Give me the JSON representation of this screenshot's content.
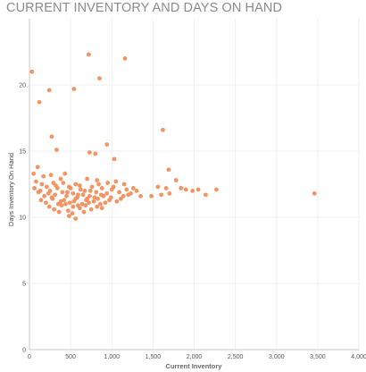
{
  "chart_data": {
    "type": "scatter",
    "title": "CURRENT INVENTORY AND DAYS ON HAND",
    "xlabel": "Current Inventory",
    "ylabel": "Days Inventory On Hand",
    "xlim": [
      0,
      4000
    ],
    "ylim": [
      0,
      25
    ],
    "x_ticks": [
      0,
      500,
      1000,
      1500,
      2000,
      2500,
      3000,
      3500,
      4000
    ],
    "x_tick_labels": [
      "0",
      "500",
      "1,000",
      "1,500",
      "2,000",
      "2,500",
      "3,000",
      "3,500",
      "4,000"
    ],
    "y_ticks": [
      0,
      5,
      10,
      15,
      20
    ],
    "y_tick_labels": [
      "0",
      "5",
      "10",
      "15",
      "20"
    ],
    "grid": true,
    "marker_color": "#f28e5c",
    "points": [
      [
        720,
        22.3
      ],
      [
        1160,
        22.0
      ],
      [
        30,
        21.0
      ],
      [
        850,
        20.5
      ],
      [
        120,
        18.7
      ],
      [
        240,
        19.6
      ],
      [
        540,
        19.7
      ],
      [
        1620,
        16.6
      ],
      [
        270,
        16.1
      ],
      [
        940,
        15.5
      ],
      [
        330,
        15.1
      ],
      [
        730,
        14.9
      ],
      [
        800,
        14.8
      ],
      [
        1030,
        14.4
      ],
      [
        1690,
        13.6
      ],
      [
        100,
        13.8
      ],
      [
        50,
        13.3
      ],
      [
        170,
        13.1
      ],
      [
        260,
        13.2
      ],
      [
        430,
        13.3
      ],
      [
        380,
        12.9
      ],
      [
        820,
        12.8
      ],
      [
        1780,
        12.8
      ],
      [
        700,
        12.9
      ],
      [
        1050,
        12.7
      ],
      [
        150,
        12.5
      ],
      [
        290,
        12.6
      ],
      [
        560,
        12.5
      ],
      [
        950,
        12.6
      ],
      [
        1150,
        12.5
      ],
      [
        60,
        12.2
      ],
      [
        210,
        12.3
      ],
      [
        340,
        12.2
      ],
      [
        480,
        12.3
      ],
      [
        620,
        12.1
      ],
      [
        760,
        12.3
      ],
      [
        880,
        12.2
      ],
      [
        1020,
        12.3
      ],
      [
        1180,
        12.1
      ],
      [
        1260,
        12.2
      ],
      [
        1560,
        12.3
      ],
      [
        1660,
        12.2
      ],
      [
        1840,
        12.2
      ],
      [
        1900,
        12.1
      ],
      [
        1980,
        12.0
      ],
      [
        2050,
        12.1
      ],
      [
        2270,
        12.1
      ],
      [
        110,
        11.9
      ],
      [
        250,
        12.0
      ],
      [
        400,
        11.9
      ],
      [
        530,
        11.8
      ],
      [
        670,
        12.0
      ],
      [
        810,
        11.9
      ],
      [
        940,
        11.8
      ],
      [
        1090,
        11.9
      ],
      [
        1230,
        11.8
      ],
      [
        1700,
        11.8
      ],
      [
        2140,
        11.7
      ],
      [
        3460,
        11.8
      ],
      [
        180,
        11.6
      ],
      [
        310,
        11.7
      ],
      [
        450,
        11.6
      ],
      [
        590,
        11.7
      ],
      [
        730,
        11.6
      ],
      [
        870,
        11.7
      ],
      [
        990,
        11.5
      ],
      [
        1140,
        11.6
      ],
      [
        1350,
        11.6
      ],
      [
        1480,
        11.6
      ],
      [
        1600,
        11.7
      ],
      [
        140,
        11.3
      ],
      [
        280,
        11.4
      ],
      [
        420,
        11.3
      ],
      [
        560,
        11.4
      ],
      [
        690,
        11.3
      ],
      [
        830,
        11.4
      ],
      [
        970,
        11.3
      ],
      [
        1110,
        11.4
      ],
      [
        200,
        11.1
      ],
      [
        350,
        11.0
      ],
      [
        490,
        11.1
      ],
      [
        640,
        11.0
      ],
      [
        780,
        11.2
      ],
      [
        920,
        11.1
      ],
      [
        1060,
        11.2
      ],
      [
        240,
        10.8
      ],
      [
        390,
        10.9
      ],
      [
        530,
        10.8
      ],
      [
        680,
        10.9
      ],
      [
        820,
        10.8
      ],
      [
        300,
        10.6
      ],
      [
        470,
        10.5
      ],
      [
        610,
        10.7
      ],
      [
        750,
        10.6
      ],
      [
        880,
        10.7
      ],
      [
        360,
        10.4
      ],
      [
        520,
        10.3
      ],
      [
        660,
        10.4
      ],
      [
        480,
        10.1
      ],
      [
        560,
        9.9
      ],
      [
        80,
        12.7
      ],
      [
        130,
        12.0
      ],
      [
        230,
        11.8
      ],
      [
        320,
        12.4
      ],
      [
        410,
        12.6
      ],
      [
        460,
        11.9
      ],
      [
        500,
        12.2
      ],
      [
        580,
        11.5
      ],
      [
        610,
        12.4
      ],
      [
        650,
        11.7
      ],
      [
        700,
        11.4
      ],
      [
        740,
        12.0
      ],
      [
        790,
        11.5
      ],
      [
        840,
        12.5
      ],
      [
        900,
        11.6
      ],
      [
        1000,
        12.1
      ],
      [
        1200,
        11.7
      ],
      [
        1300,
        12.0
      ],
      [
        380,
        11.2
      ],
      [
        440,
        11.0
      ],
      [
        270,
        11.5
      ],
      [
        540,
        11.2
      ],
      [
        590,
        10.9
      ],
      [
        720,
        11.1
      ],
      [
        860,
        11.0
      ]
    ]
  }
}
